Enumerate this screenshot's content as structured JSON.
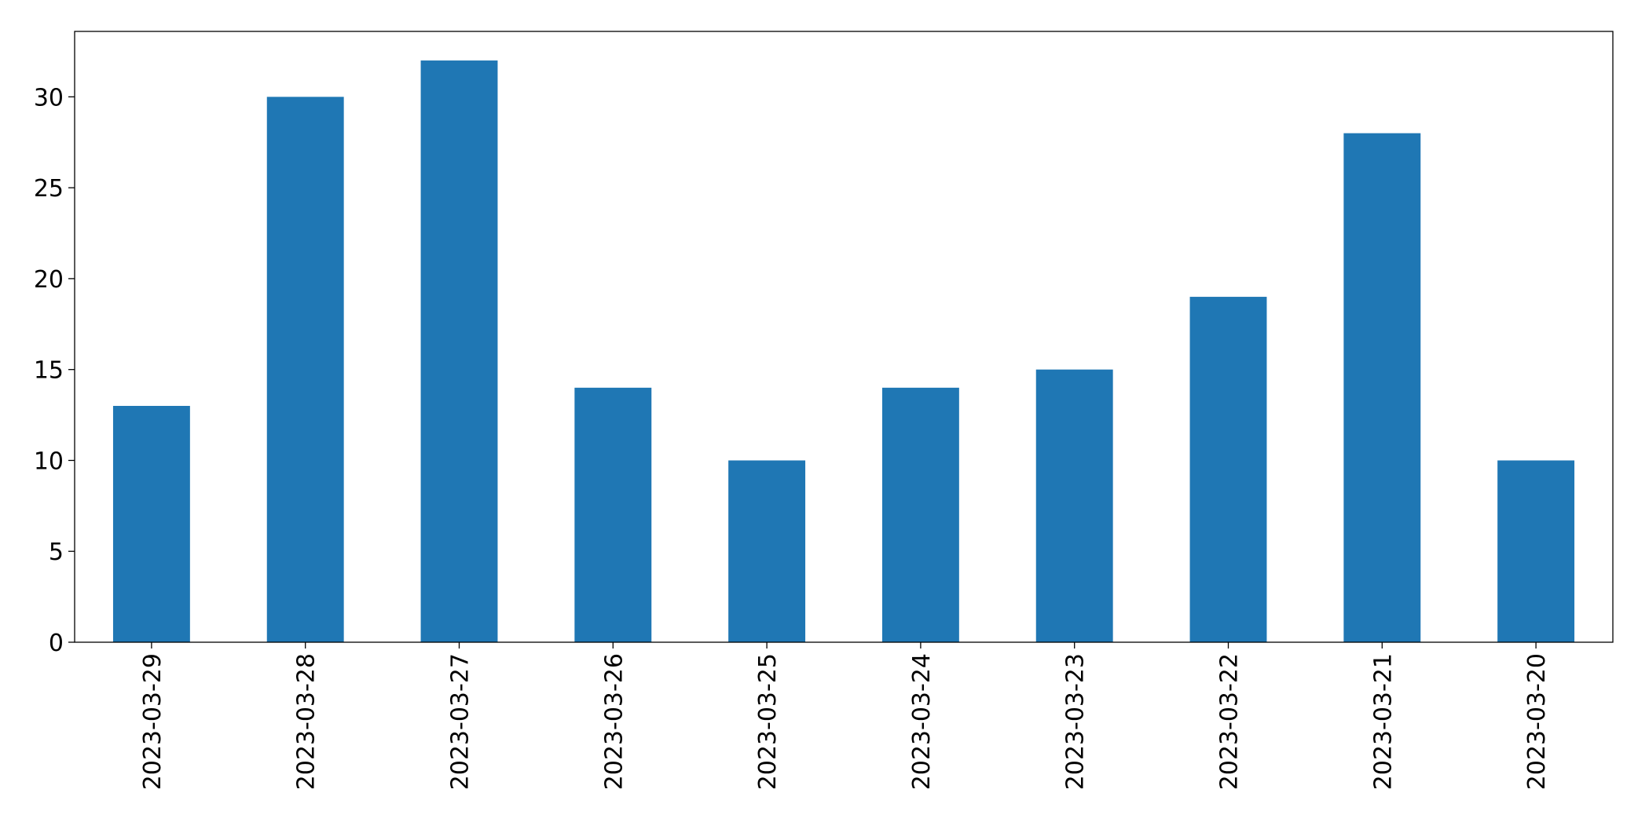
{
  "chart_data": {
    "type": "bar",
    "categories": [
      "2023-03-29",
      "2023-03-28",
      "2023-03-27",
      "2023-03-26",
      "2023-03-25",
      "2023-03-24",
      "2023-03-23",
      "2023-03-22",
      "2023-03-21",
      "2023-03-20"
    ],
    "values": [
      13,
      30,
      32,
      14,
      10,
      14,
      15,
      19,
      28,
      10
    ],
    "color": "#1f77b4",
    "ylim": [
      0,
      33.6
    ],
    "yticks": [
      0,
      5,
      10,
      15,
      20,
      25,
      30
    ],
    "grid": false
  }
}
